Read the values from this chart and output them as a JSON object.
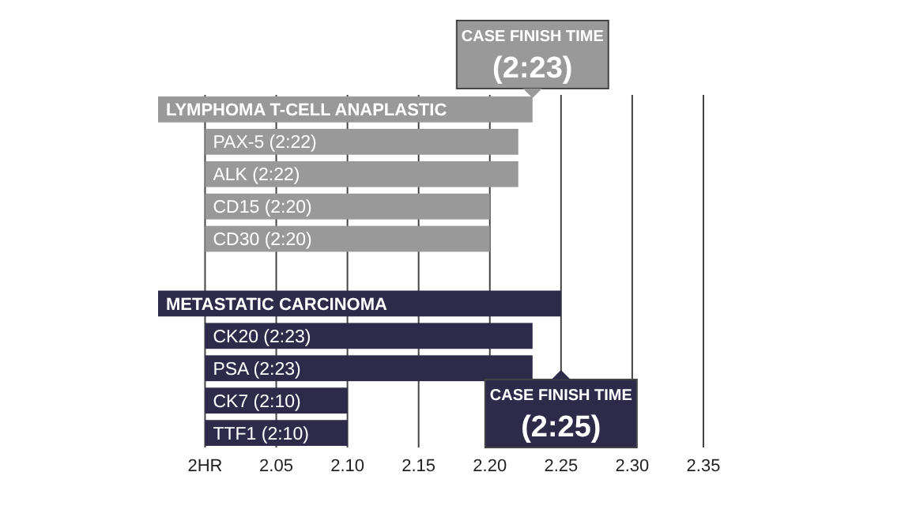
{
  "chart_data": {
    "type": "bar",
    "orientation": "horizontal",
    "categories": [
      "LYMPHOMA T-CELL ANAPLASTIC",
      "PAX-5 (2:22)",
      "ALK (2:22)",
      "CD15 (2:20)",
      "CD30 (2:20)",
      null,
      "METASTATIC CARCINOMA",
      "CK20 (2:23)",
      "PSA (2:23)",
      "CK7 (2:10)",
      "TTF1 (2:10)"
    ],
    "series": [
      {
        "values": [
          0.263,
          null,
          null,
          null,
          null,
          null,
          0.283,
          null,
          null,
          null,
          null
        ],
        "base": [
          1.967,
          null,
          null,
          null,
          null,
          null,
          1.967,
          null,
          null,
          null,
          null
        ],
        "colors": [
          "#999999",
          null,
          null,
          null,
          null,
          null,
          "#2e2b4a",
          null,
          null,
          null,
          null
        ]
      },
      {
        "values": [
          null,
          0.22,
          0.22,
          0.2,
          0.2,
          null,
          null,
          0.23,
          0.23,
          0.1,
          0.1
        ],
        "base": [
          null,
          2,
          2,
          2,
          2,
          null,
          null,
          2,
          2,
          2,
          2
        ],
        "colors": [
          null,
          "#999999",
          "#999999",
          "#999999",
          "#999999",
          null,
          null,
          "#2e2b4a",
          "#2e2b4a",
          "#2e2b4a",
          "#2e2b4a"
        ]
      }
    ],
    "xlim": [
      1.967,
      2.35
    ],
    "xticks": [
      {
        "value": 2,
        "label": "2HR"
      },
      2.05,
      {
        "value": 2.1,
        "label": "2.10"
      },
      2.15,
      {
        "value": 2.2,
        "label": "2.20"
      },
      2.25,
      {
        "value": 2.3,
        "label": "2.30"
      },
      2.35
    ],
    "grid": "x",
    "annotations": [
      {
        "text": "CASE FINISH TIME\n(2:23)",
        "x": 2.23,
        "y": "LYMPHOMA T-CELL ANAPLASTIC"
      },
      {
        "text": "CASE FINISH TIME\n(2:25)",
        "x": 2.25,
        "y": "METASTATIC CARCINOMA"
      }
    ]
  }
}
